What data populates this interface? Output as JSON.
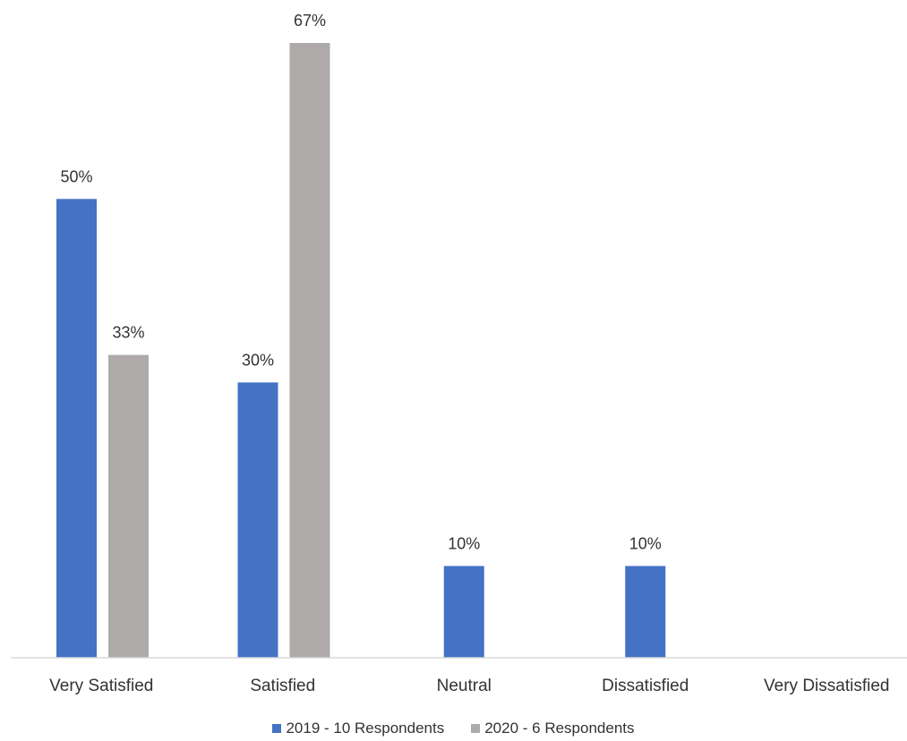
{
  "chart_data": {
    "type": "bar",
    "categories": [
      "Very Satisfied",
      "Satisfied",
      "Neutral",
      "Dissatisfied",
      "Very Dissatisfied"
    ],
    "series": [
      {
        "name": "2019 - 10 Respondents",
        "color": "#4472c4",
        "values": [
          50,
          30,
          10,
          10,
          null
        ],
        "labels": [
          "50%",
          "30%",
          "10%",
          "10%",
          ""
        ]
      },
      {
        "name": "2020 - 6 Respondents",
        "color": "#aeaaaa",
        "values": [
          33,
          67,
          null,
          null,
          null
        ],
        "labels": [
          "33%",
          "67%",
          "",
          "",
          ""
        ]
      }
    ],
    "ylim": [
      0,
      70
    ],
    "grid": false,
    "legend_position": "bottom",
    "title": "",
    "xlabel": "",
    "ylabel": ""
  }
}
